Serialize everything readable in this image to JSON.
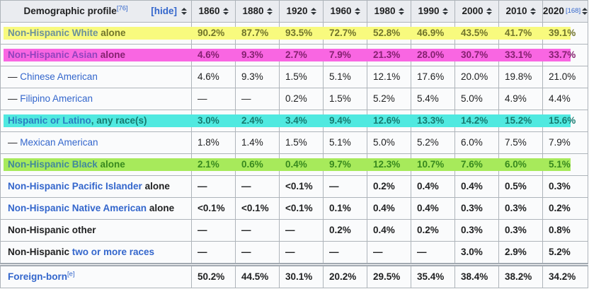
{
  "header": {
    "label": "Demographic profile",
    "label_ref": "[76]",
    "hide": "[hide]",
    "years": [
      "1860",
      "1880",
      "1920",
      "1960",
      "1980",
      "1990",
      "2000",
      "2010",
      "2020"
    ],
    "year_ref": "[168]"
  },
  "rows": [
    {
      "pre": "",
      "link": "Non-Hispanic White",
      "post": " alone",
      "ref": "",
      "highlight": "yellow",
      "bold": true,
      "separated": false,
      "values": [
        "90.2%",
        "87.7%",
        "93.5%",
        "72.7%",
        "52.8%",
        "46.9%",
        "43.5%",
        "41.7%",
        "39.1%"
      ]
    },
    {
      "pre": "",
      "link": "Non-Hispanic Asian",
      "post": " alone",
      "ref": "",
      "highlight": "magenta",
      "bold": true,
      "separated": false,
      "values": [
        "4.6%",
        "9.3%",
        "2.7%",
        "7.9%",
        "21.3%",
        "28.0%",
        "30.7%",
        "33.1%",
        "33.7%"
      ]
    },
    {
      "pre": "— ",
      "link": "Chinese American",
      "post": "",
      "ref": "",
      "highlight": null,
      "bold": false,
      "separated": false,
      "values": [
        "4.6%",
        "9.3%",
        "1.5%",
        "5.1%",
        "12.1%",
        "17.6%",
        "20.0%",
        "19.8%",
        "21.0%"
      ]
    },
    {
      "pre": "— ",
      "link": "Filipino American",
      "post": "",
      "ref": "",
      "highlight": null,
      "bold": false,
      "separated": false,
      "values": [
        "—",
        "—",
        "0.2%",
        "1.5%",
        "5.2%",
        "5.4%",
        "5.0%",
        "4.9%",
        "4.4%"
      ]
    },
    {
      "pre": "",
      "link": "Hispanic or Latino",
      "post": ", any race(s)",
      "ref": "",
      "highlight": "cyan",
      "bold": true,
      "separated": false,
      "values": [
        "3.0%",
        "2.4%",
        "3.4%",
        "9.4%",
        "12.6%",
        "13.3%",
        "14.2%",
        "15.2%",
        "15.6%"
      ]
    },
    {
      "pre": "— ",
      "link": "Mexican American",
      "post": "",
      "ref": "",
      "highlight": null,
      "bold": false,
      "separated": false,
      "values": [
        "1.8%",
        "1.4%",
        "1.5%",
        "5.1%",
        "5.0%",
        "5.2%",
        "6.0%",
        "7.5%",
        "7.9%"
      ]
    },
    {
      "pre": "",
      "link": "Non-Hispanic Black",
      "post": " alone",
      "ref": "",
      "highlight": "green",
      "bold": true,
      "separated": false,
      "values": [
        "2.1%",
        "0.6%",
        "0.4%",
        "9.7%",
        "12.3%",
        "10.7%",
        "7.6%",
        "6.0%",
        "5.1%"
      ]
    },
    {
      "pre": "",
      "link": "Non-Hispanic Pacific Islander",
      "post": " alone",
      "ref": "",
      "highlight": null,
      "bold": true,
      "separated": false,
      "values": [
        "—",
        "—",
        "<0.1%",
        "—",
        "0.2%",
        "0.4%",
        "0.4%",
        "0.5%",
        "0.3%"
      ]
    },
    {
      "pre": "",
      "link": "Non-Hispanic Native American",
      "post": " alone",
      "ref": "",
      "highlight": null,
      "bold": true,
      "separated": false,
      "values": [
        "<0.1%",
        "<0.1%",
        "<0.1%",
        "0.1%",
        "0.4%",
        "0.4%",
        "0.3%",
        "0.3%",
        "0.2%"
      ]
    },
    {
      "pre": "Non-Hispanic other",
      "link": "",
      "post": "",
      "ref": "",
      "highlight": null,
      "bold": true,
      "separated": false,
      "values": [
        "—",
        "—",
        "—",
        "0.2%",
        "0.4%",
        "0.2%",
        "0.3%",
        "0.3%",
        "0.8%"
      ]
    },
    {
      "pre": "Non-Hispanic ",
      "link": "two or more races",
      "post": "",
      "ref": "",
      "highlight": null,
      "bold": true,
      "separated": false,
      "values": [
        "—",
        "—",
        "—",
        "—",
        "—",
        "—",
        "3.0%",
        "2.9%",
        "5.2%"
      ]
    },
    {
      "pre": "",
      "link": "Foreign-born",
      "post": "",
      "ref": "[e]",
      "highlight": null,
      "bold": true,
      "separated": true,
      "values": [
        "50.2%",
        "44.5%",
        "30.1%",
        "20.2%",
        "29.5%",
        "35.4%",
        "38.4%",
        "38.2%",
        "34.2%"
      ]
    }
  ],
  "colors": {
    "text": "#202122",
    "link": "#3366cc",
    "header_bg": "#eaecf0",
    "row_bg": "#fafbfc",
    "border": "#a2a9b1",
    "inner_border": "#aeb4ba",
    "yellow": "#f8fa7e",
    "yellow_text": "#71742b",
    "yellow_link": "#6c919b",
    "magenta": "#f966e2",
    "magenta_text": "#84206f",
    "magenta_link": "#9242be",
    "cyan": "#50e9e0",
    "cyan_text": "#167a70",
    "cyan_link": "#2a7ec0",
    "green": "#a7ea5b",
    "green_text": "#38891e",
    "green_link": "#41899b"
  }
}
